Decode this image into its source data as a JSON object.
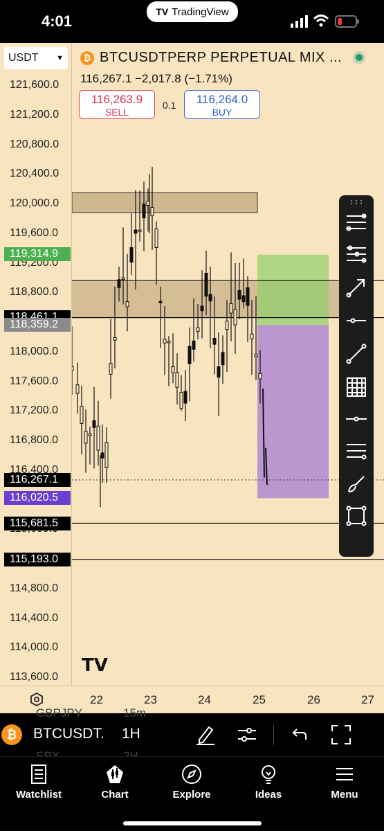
{
  "status_bar": {
    "time": "4:01",
    "app_pill": "TradingView",
    "app_pill_mark": "TV"
  },
  "chart": {
    "currency_select": "USDT",
    "symbol_title": "BTCUSDTPERP PERPETUAL MIX ...",
    "price_line": "116,267.1  −2,017.8 (−1.71%)",
    "sell": {
      "value": "116,263.9",
      "label": "SELL"
    },
    "buy": {
      "value": "116,264.0",
      "label": "BUY"
    },
    "quantity": "0.1",
    "price_ticks": [
      "121,600.0",
      "121,200.0",
      "120,800.0",
      "120,400.0",
      "120,000.0",
      "119,600.0",
      "119,200.0",
      "118,800.0",
      "118,000.0",
      "117,600.0",
      "117,200.0",
      "116,800.0",
      "116,400.0",
      "115,600.0",
      "114,800.0",
      "114,400.0",
      "114,000.0",
      "113,600.0"
    ],
    "price_labels": [
      {
        "value": "119,314.9",
        "color": "#4caf50"
      },
      {
        "value": "118,461.1",
        "color": "#000000"
      },
      {
        "value": "118,359.2",
        "color": "#8a8a8a"
      },
      {
        "value": "116,267.1",
        "color": "#000000"
      },
      {
        "value": "116,020.5",
        "color": "#6a3fcf"
      },
      {
        "value": "115,681.5",
        "color": "#000000"
      },
      {
        "value": "115,193.0",
        "color": "#000000"
      }
    ],
    "time_labels": [
      "22",
      "23",
      "24",
      "25",
      "26",
      "27"
    ],
    "watermark": "TV",
    "zones": {
      "supply_zone": [
        119880,
        120150
      ],
      "mid_zone": [
        118460,
        118950
      ],
      "target_zone": [
        118360,
        119310
      ],
      "stop_zone": [
        116020,
        118360
      ]
    },
    "horizontal_lines": [
      118960,
      118460,
      115681.5,
      115193
    ],
    "current_price": 116267.1,
    "colors": {
      "background": "#f8e4bf",
      "candle": "#111111",
      "target": "#8fd06a",
      "stop": "#9b6bd6",
      "zone": "#c2a87f"
    }
  },
  "drawing_tools": [
    "fib-retracement-icon",
    "fib-extension-icon",
    "arrow-icon",
    "horizontal-ray-icon",
    "trend-line-icon",
    "grid-icon",
    "horizontal-line-icon",
    "parallel-channel-icon",
    "brush-icon",
    "rectangle-icon"
  ],
  "symbol_bar": {
    "symbol": "BTCUSDT.",
    "interval": "1H",
    "ghost_symbols": [
      "GBPJPY",
      "15m",
      "SPX",
      "2H"
    ]
  },
  "tabs": [
    {
      "label": "Watchlist",
      "icon": "watchlist-icon"
    },
    {
      "label": "Chart",
      "icon": "chart-icon"
    },
    {
      "label": "Explore",
      "icon": "compass-icon"
    },
    {
      "label": "Ideas",
      "icon": "lightbulb-icon"
    },
    {
      "label": "Menu",
      "icon": "menu-icon"
    }
  ]
}
